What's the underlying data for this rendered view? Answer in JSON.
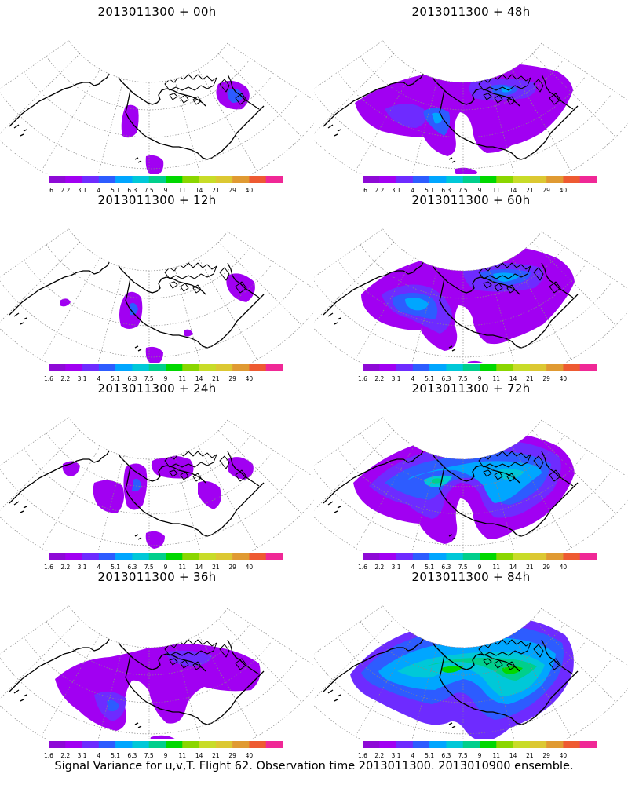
{
  "panels": [
    {
      "title": "2013011300 + 00h",
      "stage": 0
    },
    {
      "title": "2013011300 + 48h",
      "stage": 4
    },
    {
      "title": "2013011300 + 12h",
      "stage": 1
    },
    {
      "title": "2013011300 + 60h",
      "stage": 5
    },
    {
      "title": "2013011300 + 24h",
      "stage": 2
    },
    {
      "title": "2013011300 + 72h",
      "stage": 6
    },
    {
      "title": "2013011300 + 36h",
      "stage": 3
    },
    {
      "title": "2013011300 + 84h",
      "stage": 7
    }
  ],
  "colorbar": {
    "labels": [
      "1.6",
      "2.2",
      "3.1",
      "4",
      "5.1",
      "6.3",
      "7.5",
      "9",
      "11",
      "14",
      "21",
      "29",
      "40"
    ],
    "colors": [
      "#8e0ad6",
      "#a100f2",
      "#6e2bff",
      "#2d5cff",
      "#00a6ff",
      "#00c8d8",
      "#00cf8c",
      "#00d800",
      "#8ad600",
      "#c8dc28",
      "#dcc832",
      "#e09a32",
      "#ee5a32",
      "#f02896"
    ]
  },
  "footer": "Signal Variance for u,v,T. Flight 62. Observation time 2013011300. 2013010900 ensemble."
}
